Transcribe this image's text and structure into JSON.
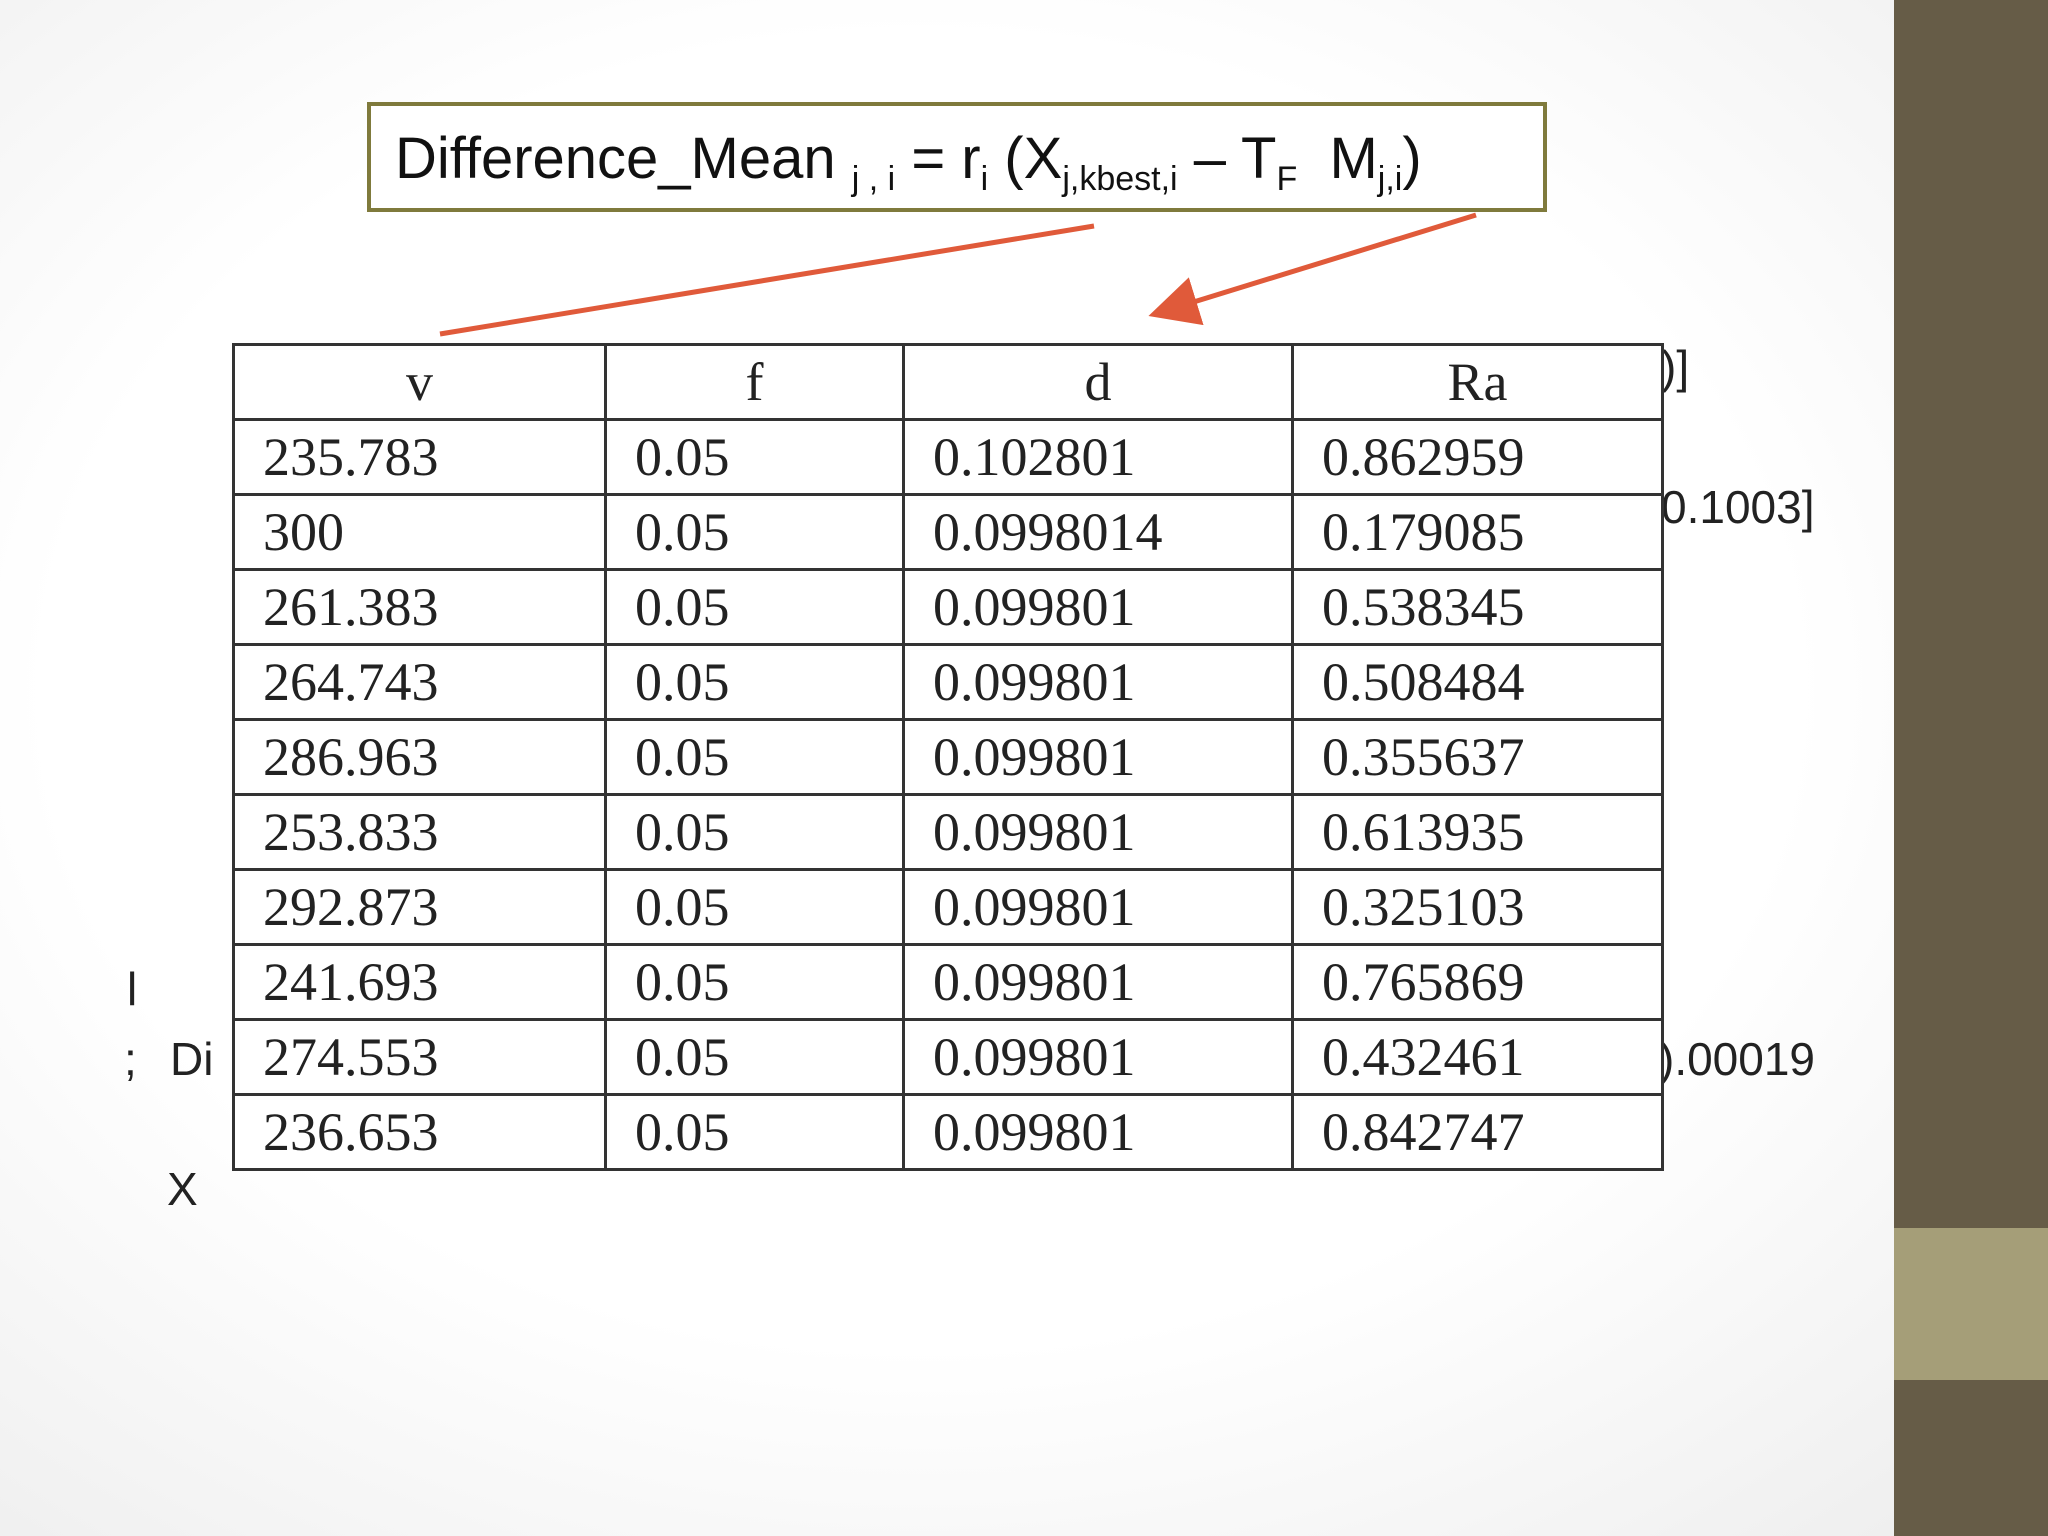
{
  "formula": [
    {
      "text": "Difference_Mean "
    },
    {
      "sub": "j , i"
    },
    {
      "text": " = r"
    },
    {
      "sub": "i"
    },
    {
      "text": " (X"
    },
    {
      "sub": "j,kbest,i"
    },
    {
      "text": " – T"
    },
    {
      "sub": "F"
    },
    {
      "text": "  M"
    },
    {
      "sub": "j,i"
    },
    {
      "text": ")"
    }
  ],
  "table": {
    "header": [
      "v",
      "f",
      "d",
      "Ra"
    ],
    "rows": [
      [
        "235.783",
        "0.05",
        "0.102801",
        "0.862959"
      ],
      [
        "300",
        "0.05",
        "0.0998014",
        "0.179085"
      ],
      [
        "261.383",
        "0.05",
        "0.099801",
        "0.538345"
      ],
      [
        "264.743",
        "0.05",
        "0.099801",
        "0.508484"
      ],
      [
        "286.963",
        "0.05",
        "0.099801",
        "0.355637"
      ],
      [
        "253.833",
        "0.05",
        "0.099801",
        "0.613935"
      ],
      [
        "292.873",
        "0.05",
        "0.099801",
        "0.325103"
      ],
      [
        "241.693",
        "0.05",
        "0.099801",
        "0.765869"
      ],
      [
        "274.553",
        "0.05",
        "0.099801",
        "0.432461"
      ],
      [
        "236.653",
        "0.05",
        "0.099801",
        "0.842747"
      ]
    ]
  },
  "fragments": [
    ")]",
    "0.1003]",
    "l",
    ";",
    "Di",
    ").00019",
    "X"
  ]
}
